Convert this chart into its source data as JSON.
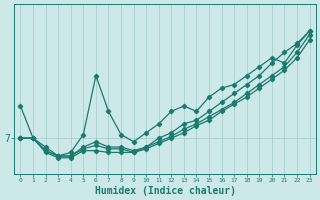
{
  "background_color": "#cce8e8",
  "line_color": "#1a7a6e",
  "grid_color": "#aacece",
  "xlabel": "Humidex (Indice chaleur)",
  "xlim": [
    -0.5,
    23.5
  ],
  "ylim": [
    5.0,
    14.5
  ],
  "ytick_val": 7,
  "ytick_label": "7",
  "xticks": [
    0,
    1,
    2,
    3,
    4,
    5,
    6,
    7,
    8,
    9,
    10,
    11,
    12,
    13,
    14,
    15,
    16,
    17,
    18,
    19,
    20,
    21,
    22,
    23
  ],
  "series": [
    {
      "x": [
        0,
        1,
        2,
        3,
        4,
        5,
        6,
        7,
        8,
        9,
        10,
        11,
        12,
        13,
        14,
        15,
        16,
        17,
        18,
        19,
        20,
        21,
        22,
        23
      ],
      "y": [
        8.8,
        7.0,
        6.5,
        6.0,
        6.2,
        7.2,
        10.5,
        8.5,
        7.2,
        6.8,
        7.3,
        7.8,
        8.5,
        8.8,
        8.5,
        9.3,
        9.8,
        10.0,
        10.5,
        11.0,
        11.5,
        11.2,
        12.2,
        13.0
      ]
    },
    {
      "x": [
        0,
        1,
        2,
        3,
        4,
        5,
        6,
        7,
        8,
        9,
        10,
        11,
        12,
        13,
        14,
        15,
        16,
        17,
        18,
        19,
        20,
        21,
        22,
        23
      ],
      "y": [
        7.0,
        7.0,
        6.3,
        6.0,
        6.0,
        6.5,
        6.8,
        6.5,
        6.5,
        6.3,
        6.5,
        7.0,
        7.3,
        7.8,
        8.0,
        8.5,
        9.0,
        9.5,
        10.0,
        10.5,
        11.2,
        11.8,
        12.3,
        13.0
      ]
    },
    {
      "x": [
        0,
        1,
        2,
        3,
        4,
        5,
        6,
        7,
        8,
        9,
        10,
        11,
        12,
        13,
        14,
        15,
        16,
        17,
        18,
        19,
        20,
        21,
        22,
        23
      ],
      "y": [
        7.0,
        7.0,
        6.3,
        6.0,
        6.0,
        6.4,
        6.6,
        6.4,
        6.4,
        6.2,
        6.5,
        6.8,
        7.1,
        7.5,
        7.8,
        8.2,
        8.6,
        9.0,
        9.5,
        10.0,
        10.5,
        11.0,
        11.8,
        12.8
      ]
    },
    {
      "x": [
        0,
        1,
        2,
        3,
        4,
        5,
        6,
        7,
        8,
        9,
        10,
        11,
        12,
        13,
        14,
        15,
        16,
        17,
        18,
        19,
        20,
        21,
        22,
        23
      ],
      "y": [
        7.0,
        7.0,
        6.2,
        5.9,
        5.9,
        6.3,
        6.3,
        6.2,
        6.2,
        6.2,
        6.4,
        6.7,
        7.0,
        7.3,
        7.7,
        8.0,
        8.5,
        8.9,
        9.3,
        9.8,
        10.3,
        10.8,
        11.5,
        12.5
      ]
    }
  ]
}
